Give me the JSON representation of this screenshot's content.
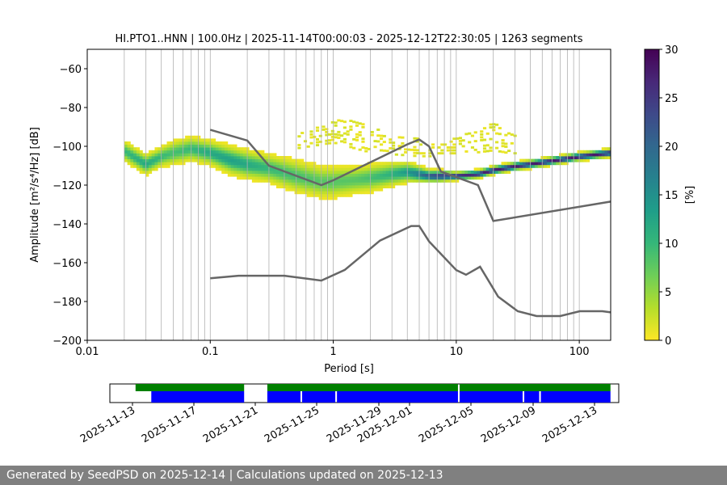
{
  "chart_data": [
    {
      "type": "heatmap",
      "title": "HI.PTO1..HNN | 100.0Hz | 2025-11-14T00:00:03 - 2025-12-12T22:30:05 | 1263 segments",
      "xlabel": "Period [s]",
      "ylabel": "Amplitude [m²/s⁴/Hz] [dB]",
      "x_scale": "log",
      "xlim": [
        0.01,
        180
      ],
      "ylim": [
        -200,
        -50
      ],
      "x_ticks": [
        {
          "value": 0.01,
          "label": "0.01"
        },
        {
          "value": 0.1,
          "label": "0.1"
        },
        {
          "value": 1,
          "label": "1"
        },
        {
          "value": 10,
          "label": "10"
        },
        {
          "value": 100,
          "label": "100"
        }
      ],
      "y_ticks": [
        {
          "value": -60,
          "label": "−60"
        },
        {
          "value": -80,
          "label": "−80"
        },
        {
          "value": -100,
          "label": "−100"
        },
        {
          "value": -120,
          "label": "−120"
        },
        {
          "value": -140,
          "label": "−140"
        },
        {
          "value": -160,
          "label": "−160"
        },
        {
          "value": -180,
          "label": "−180"
        },
        {
          "value": -200,
          "label": "−200"
        }
      ],
      "grid": "vertical",
      "colorbar": {
        "label": "[%]",
        "range": [
          0,
          30
        ],
        "ticks": [
          {
            "value": 0,
            "label": "0"
          },
          {
            "value": 5,
            "label": "5"
          },
          {
            "value": 10,
            "label": "10"
          },
          {
            "value": 15,
            "label": "15"
          },
          {
            "value": 20,
            "label": "20"
          },
          {
            "value": 25,
            "label": "25"
          },
          {
            "value": 30,
            "label": "30"
          }
        ],
        "colormap": [
          "#fde725",
          "#b5de2b",
          "#6ece58",
          "#35b779",
          "#1f9e89",
          "#26828e",
          "#31688e",
          "#3e4989",
          "#482878",
          "#440154"
        ]
      },
      "mode_curve": {
        "x": [
          0.02,
          0.03,
          0.04,
          0.05,
          0.07,
          0.1,
          0.15,
          0.2,
          0.3,
          0.5,
          0.8,
          1.0,
          1.5,
          2,
          3,
          4,
          5,
          6,
          7,
          10,
          15,
          20,
          30,
          50,
          100,
          180
        ],
        "y": [
          -103,
          -110,
          -106,
          -104,
          -102,
          -104,
          -108,
          -110,
          -112,
          -116,
          -119,
          -119,
          -118,
          -117,
          -115,
          -114,
          -115,
          -116,
          -116,
          -116,
          -115,
          -113,
          -111,
          -109,
          -106,
          -104
        ],
        "spread_db": [
          5,
          5,
          5,
          6,
          6,
          6,
          7,
          7,
          7,
          8,
          8,
          8,
          7,
          7,
          6,
          5,
          4,
          3,
          3,
          2,
          2,
          2,
          2,
          2,
          2,
          2
        ],
        "peak_percent": [
          10,
          12,
          10,
          9,
          10,
          12,
          13,
          12,
          10,
          9,
          8,
          8,
          8,
          9,
          11,
          14,
          18,
          22,
          24,
          26,
          27,
          28,
          28,
          28,
          28,
          28
        ]
      },
      "scatter_band": {
        "x": [
          0.5,
          0.8,
          1.0,
          1.2,
          1.5,
          2,
          3,
          5,
          7,
          10,
          15,
          20,
          25,
          30
        ],
        "upper_y": [
          -95,
          -90,
          -88,
          -86,
          -87,
          -90,
          -95,
          -97,
          -100,
          -96,
          -92,
          -89,
          -91,
          -95
        ],
        "lower_y": [
          -102,
          -100,
          -99,
          -100,
          -102,
          -104,
          -105,
          -106,
          -106,
          -106,
          -104,
          -103,
          -104,
          -106
        ]
      },
      "noise_models": [
        {
          "x": [
            0.1,
            0.2,
            0.3,
            0.8,
            1.0,
            4.0,
            5.0,
            6.0,
            7.5,
            15.0,
            20.0,
            180.0
          ],
          "y": [
            -91.5,
            -97.0,
            -110.0,
            -120.0,
            -117.5,
            -99.0,
            -96.5,
            -100.0,
            -113.0,
            -120.0,
            -138.5,
            -128.5
          ]
        },
        {
          "x": [
            0.1,
            0.17,
            0.4,
            0.8,
            1.24,
            2.4,
            4.3,
            5.0,
            6.0,
            10.0,
            12.0,
            15.6,
            21.9,
            31.6,
            45.0,
            70.0,
            101.0,
            154.0,
            180.0
          ],
          "y": [
            -168.0,
            -166.7,
            -166.7,
            -169.2,
            -163.7,
            -148.6,
            -141.1,
            -141.1,
            -149.0,
            -163.8,
            -166.2,
            -162.1,
            -177.5,
            -185.0,
            -187.5,
            -187.5,
            -185.0,
            -185.0,
            -185.6
          ]
        }
      ]
    },
    {
      "type": "timeline",
      "x_ticks": [
        "2025-11-13",
        "2025-11-17",
        "2025-11-21",
        "2025-11-25",
        "2025-11-29",
        "2025-12-01",
        "2025-12-05",
        "2025-12-09",
        "2025-12-13"
      ],
      "x_range_days": [
        0,
        30.7
      ],
      "green_segments": [
        [
          1.55,
          8.1
        ],
        [
          9.5,
          21.0
        ],
        [
          21.1,
          30.2
        ]
      ],
      "blue_segments": [
        [
          2.5,
          8.1
        ],
        [
          9.5,
          11.5
        ],
        [
          11.6,
          13.6
        ],
        [
          13.7,
          21.0
        ],
        [
          21.1,
          24.9
        ],
        [
          25.0,
          25.9
        ],
        [
          26.0,
          30.2
        ]
      ],
      "green_color": "#008000",
      "blue_color": "#0000ff"
    }
  ],
  "footer": {
    "text": "Generated by SeedPSD on 2025-12-14 | Calculations updated on 2025-12-13"
  }
}
